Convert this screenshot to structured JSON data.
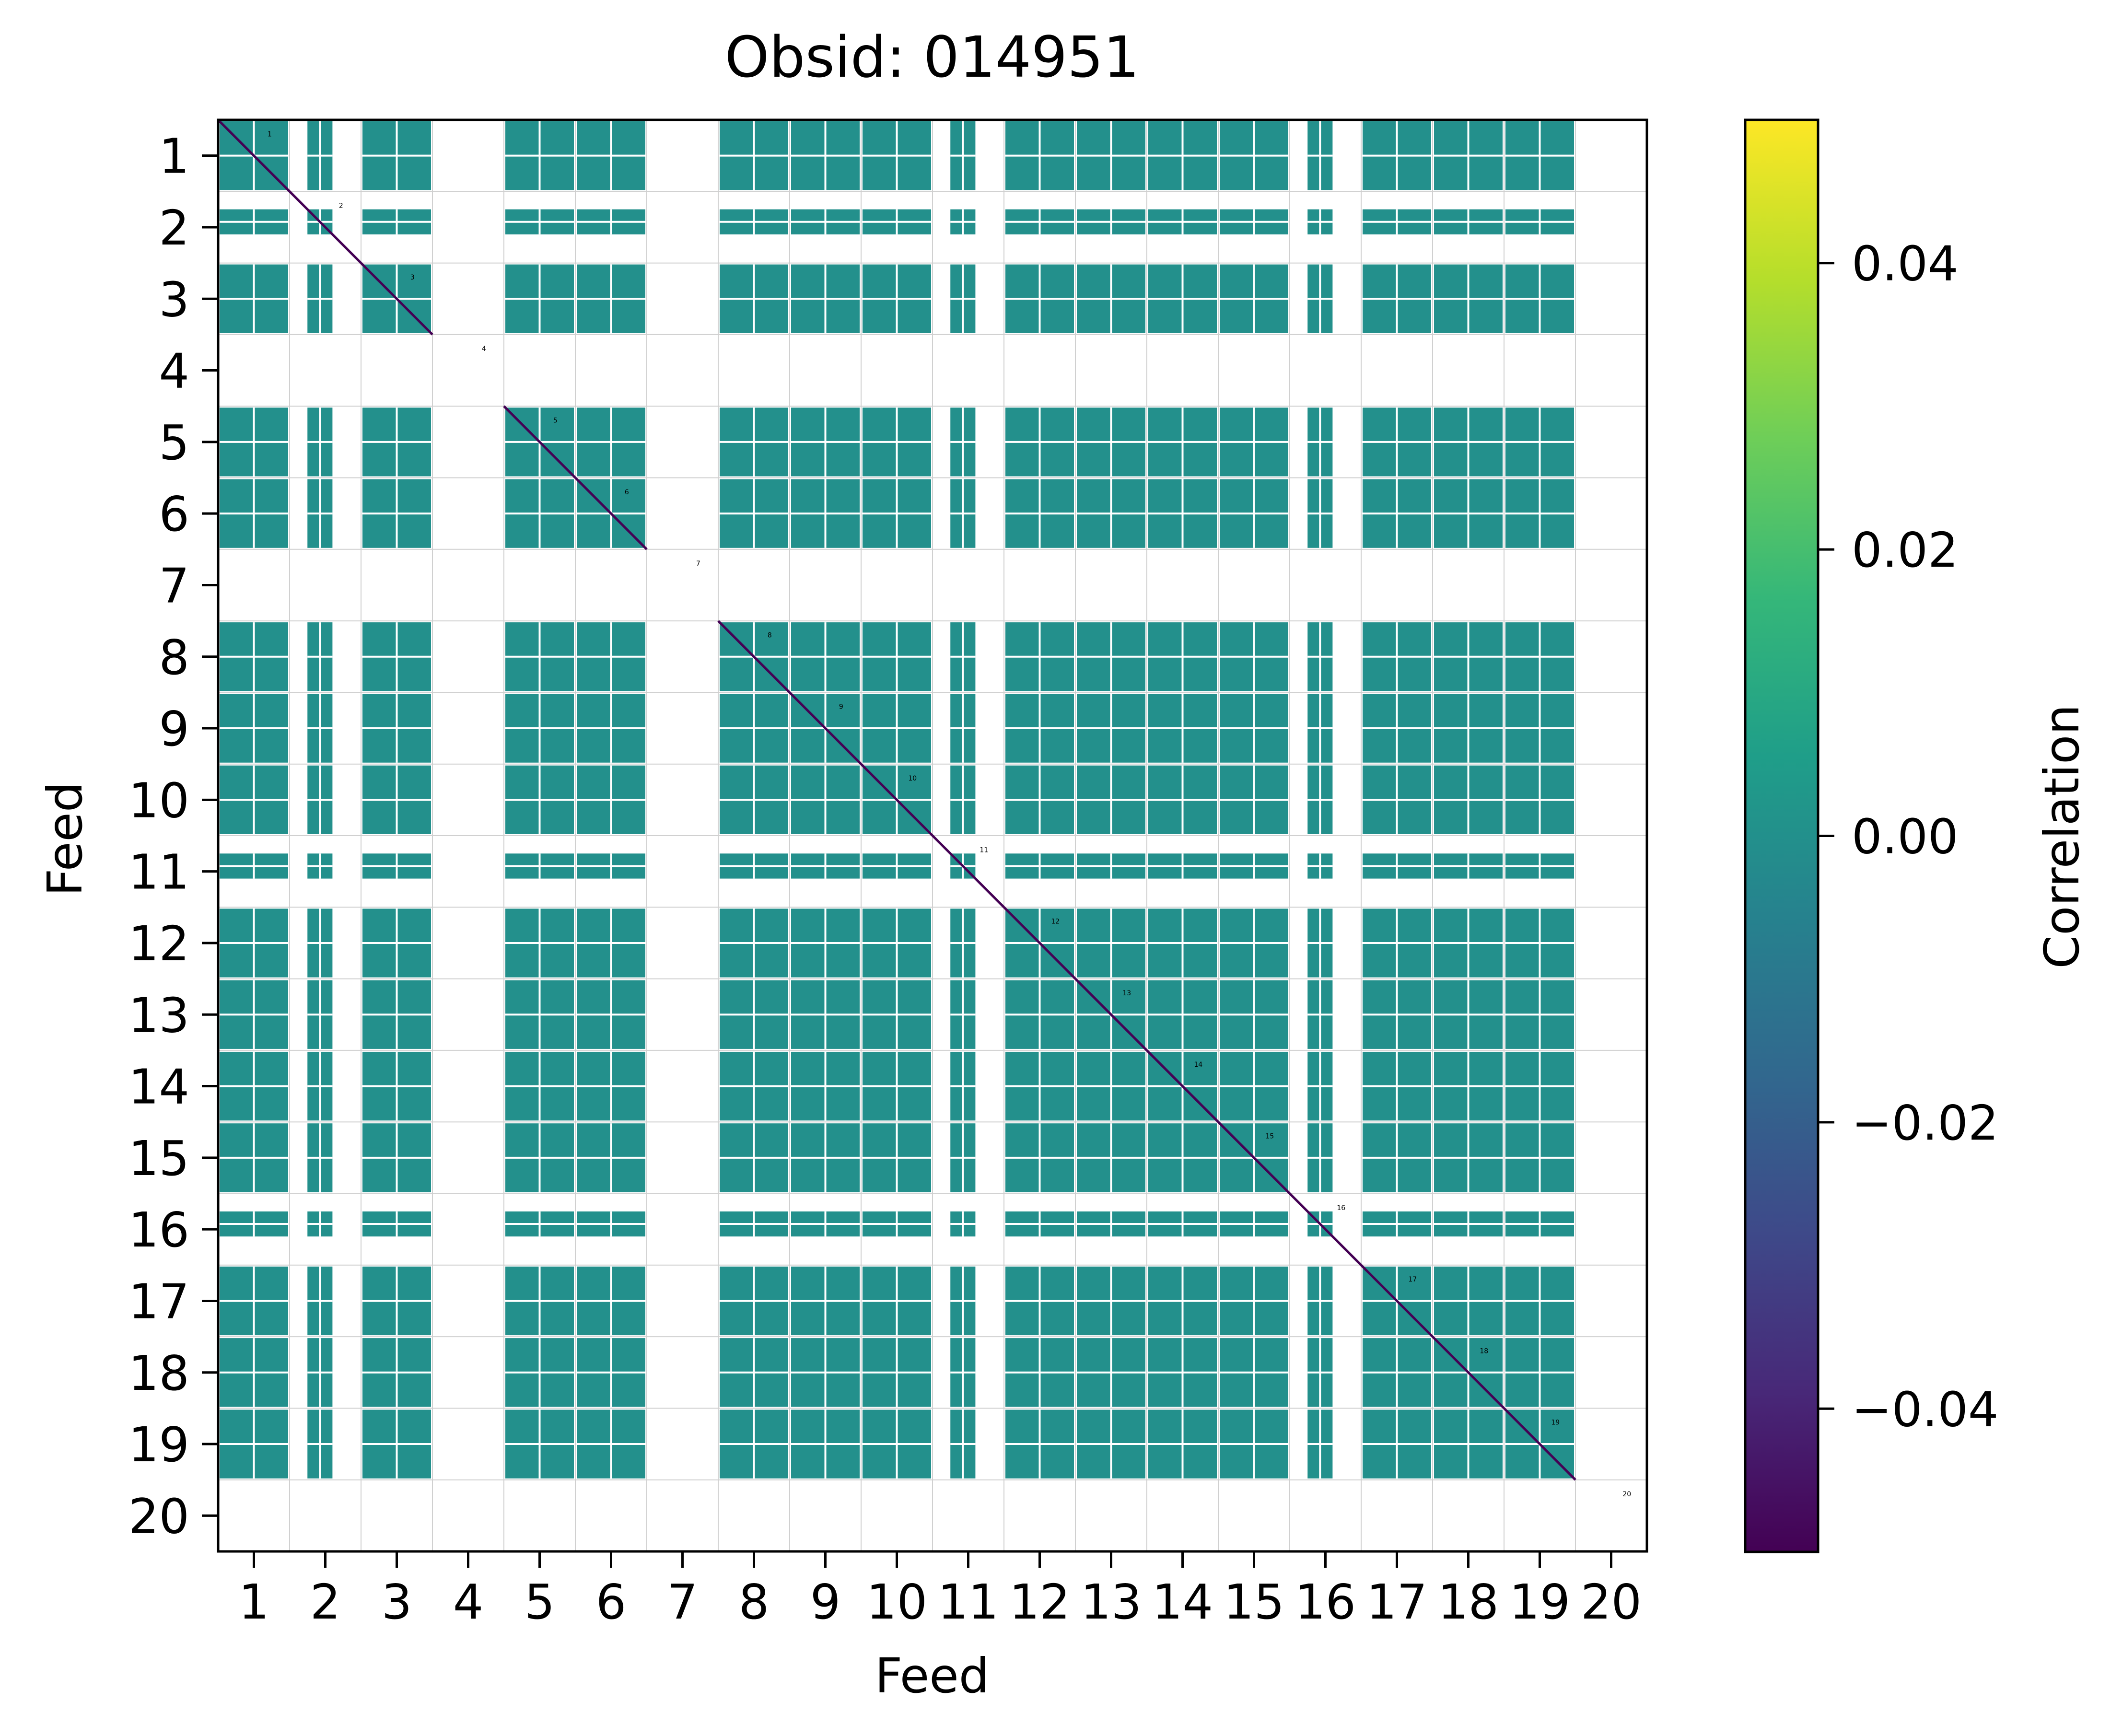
{
  "chart_data": {
    "type": "heatmap",
    "title": "Obsid: 014951",
    "xlabel": "Feed",
    "ylabel": "Feed",
    "x_tick_labels": [
      "1",
      "2",
      "3",
      "4",
      "5",
      "6",
      "7",
      "8",
      "9",
      "10",
      "11",
      "12",
      "13",
      "14",
      "15",
      "16",
      "17",
      "18",
      "19",
      "20"
    ],
    "y_tick_labels": [
      "1",
      "2",
      "3",
      "4",
      "5",
      "6",
      "7",
      "8",
      "9",
      "10",
      "11",
      "12",
      "13",
      "14",
      "15",
      "16",
      "17",
      "18",
      "19",
      "20"
    ],
    "feeds": [
      1,
      2,
      3,
      4,
      5,
      6,
      7,
      8,
      9,
      10,
      11,
      12,
      13,
      14,
      15,
      16,
      17,
      18,
      19,
      20
    ],
    "missing_feeds": [
      4,
      7,
      20
    ],
    "partially_flagged_feeds": [
      2,
      11,
      16
    ],
    "off_diagonal_value": 0.0,
    "diagonal_value": -0.05,
    "colormap": "viridis",
    "colorbar": {
      "label": "Correlation",
      "vmin": -0.05,
      "vmax": 0.05,
      "ticks": [
        -0.04,
        -0.02,
        0.0,
        0.02,
        0.04
      ],
      "tick_labels": [
        "−0.04",
        "−0.02",
        "0.00",
        "0.02",
        "0.04"
      ],
      "stops": [
        "#440154",
        "#482878",
        "#3e4989",
        "#31688e",
        "#26828e",
        "#1f9e89",
        "#35b779",
        "#6ece58",
        "#b5de2b",
        "#fde725"
      ]
    },
    "cell_color": "#21918c",
    "grid": true
  }
}
